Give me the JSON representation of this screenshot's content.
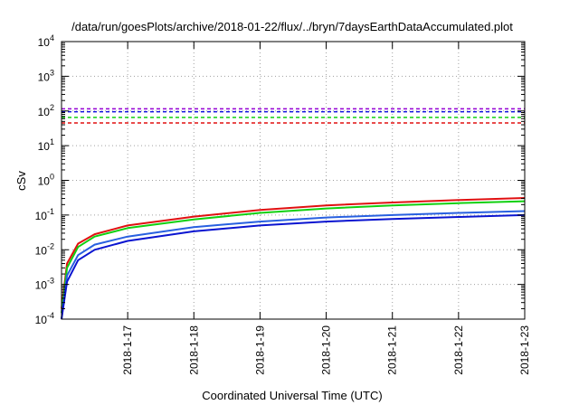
{
  "chart_data": {
    "type": "line",
    "title": "/data/run/goesPlots/archive/2018-01-22/flux/../bryn/7daysEarthDataAccumulated.plot",
    "xlabel": "Coordinated Universal Time (UTC)",
    "ylabel": "cSv",
    "y_scale": "log",
    "ylim": [
      0.0001,
      10000
    ],
    "xlim": [
      "2018-01-16",
      "2018-01-23"
    ],
    "x_ticks": [
      "2018-1-17",
      "2018-1-18",
      "2018-1-19",
      "2018-1-20",
      "2018-1-21",
      "2018-1-22",
      "2018-1-23"
    ],
    "y_ticks": [
      {
        "base": "10",
        "exp": "-4",
        "value": 0.0001
      },
      {
        "base": "10",
        "exp": "-3",
        "value": 0.001
      },
      {
        "base": "10",
        "exp": "-2",
        "value": 0.01
      },
      {
        "base": "10",
        "exp": "-1",
        "value": 0.1
      },
      {
        "base": "10",
        "exp": "0",
        "value": 1
      },
      {
        "base": "10",
        "exp": "1",
        "value": 10
      },
      {
        "base": "10",
        "exp": "2",
        "value": 100
      },
      {
        "base": "10",
        "exp": "3",
        "value": 1000
      },
      {
        "base": "10",
        "exp": "4",
        "value": 10000
      }
    ],
    "grid": true,
    "reference_lines": [
      {
        "color": "#9400d3",
        "value": 115
      },
      {
        "color": "#1010e0",
        "value": 95
      },
      {
        "color": "#10d010",
        "value": 65
      },
      {
        "color": "#e01010",
        "value": 45
      }
    ],
    "series": [
      {
        "color": "#e01010",
        "x": [
          "2018-01-16",
          "2018-01-16T02",
          "2018-01-16T06",
          "2018-01-16T12",
          "2018-01-17",
          "2018-01-18",
          "2018-01-19",
          "2018-01-20",
          "2018-01-21",
          "2018-01-22",
          "2018-01-23"
        ],
        "y": [
          0.0002,
          0.004,
          0.015,
          0.028,
          0.05,
          0.09,
          0.14,
          0.19,
          0.23,
          0.27,
          0.31
        ]
      },
      {
        "color": "#10d010",
        "x": [
          "2018-01-16",
          "2018-01-16T02",
          "2018-01-16T06",
          "2018-01-16T12",
          "2018-01-17",
          "2018-01-18",
          "2018-01-19",
          "2018-01-20",
          "2018-01-21",
          "2018-01-22",
          "2018-01-23"
        ],
        "y": [
          0.00015,
          0.003,
          0.012,
          0.024,
          0.042,
          0.075,
          0.115,
          0.155,
          0.19,
          0.22,
          0.25
        ]
      },
      {
        "color": "#2860e0",
        "x": [
          "2018-01-16",
          "2018-01-16T02",
          "2018-01-16T06",
          "2018-01-16T12",
          "2018-01-17",
          "2018-01-18",
          "2018-01-19",
          "2018-01-20",
          "2018-01-21",
          "2018-01-22",
          "2018-01-23"
        ],
        "y": [
          0.0001,
          0.0018,
          0.007,
          0.014,
          0.024,
          0.045,
          0.065,
          0.085,
          0.1,
          0.115,
          0.13
        ]
      },
      {
        "color": "#0a14d0",
        "x": [
          "2018-01-16",
          "2018-01-16T02",
          "2018-01-16T06",
          "2018-01-16T12",
          "2018-01-17",
          "2018-01-18",
          "2018-01-19",
          "2018-01-20",
          "2018-01-21",
          "2018-01-22",
          "2018-01-23"
        ],
        "y": [
          0.0001,
          0.0012,
          0.005,
          0.01,
          0.018,
          0.034,
          0.05,
          0.065,
          0.077,
          0.088,
          0.1
        ]
      }
    ]
  }
}
